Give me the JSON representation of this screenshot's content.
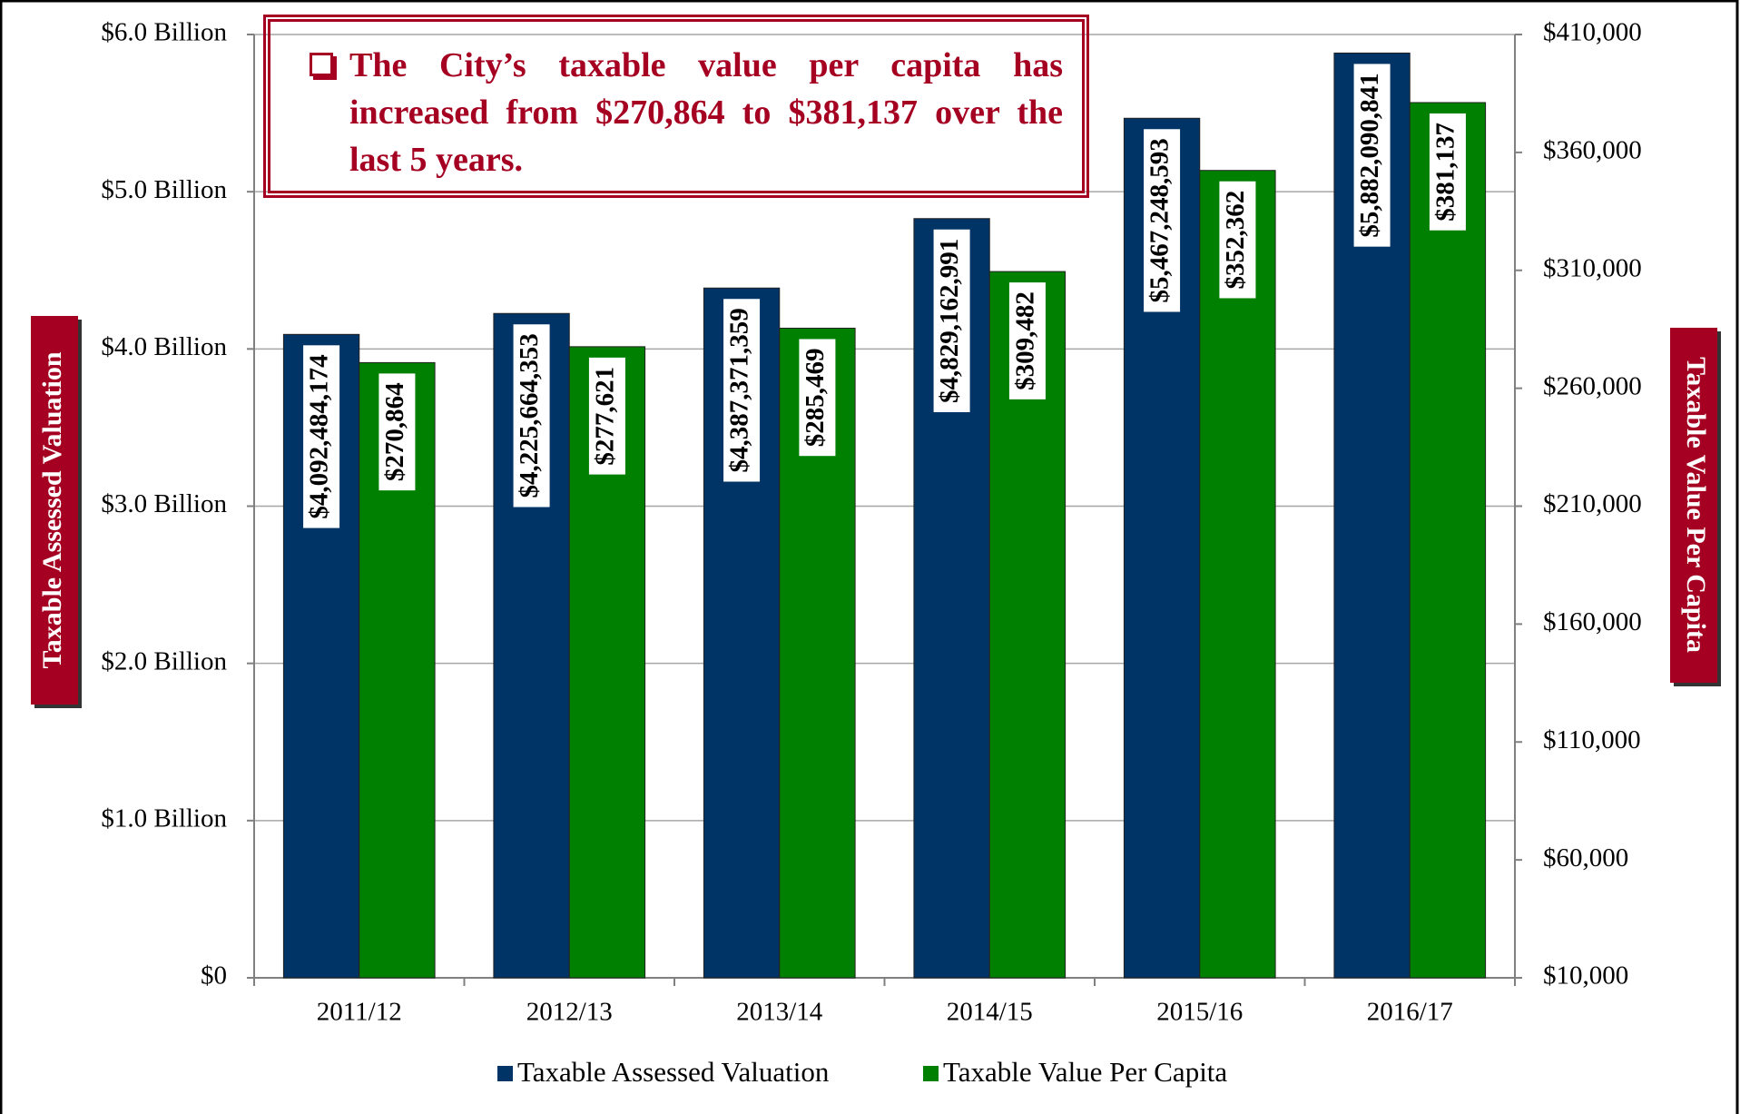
{
  "chart_data": {
    "type": "bar",
    "annotation": "The City’s taxable value per capita has increased from $270,864 to $381,137 over the last 5 years.",
    "ylabel": "Taxable Assessed Valuation",
    "y2label": "Taxable Value Per Capita",
    "categories": [
      "2011/12",
      "2012/13",
      "2013/14",
      "2014/15",
      "2015/16",
      "2016/17"
    ],
    "series": [
      {
        "name": "Taxable Assessed Valuation",
        "color": "#003366",
        "values": [
          4092484174,
          4225664353,
          4387371359,
          4829162991,
          5467248593,
          5882090841
        ],
        "value_labels": [
          "$4,092,484,174",
          "$4,225,664,353",
          "$4,387,371,359",
          "$4,829,162,991",
          "$5,467,248,593",
          "$5,882,090,841"
        ]
      },
      {
        "name": "Taxable Value Per Capita",
        "color": "#008000",
        "axis": "y2",
        "values": [
          270864,
          277621,
          285469,
          309482,
          352362,
          381137
        ],
        "value_labels": [
          "$270,864",
          "$277,621",
          "$285,469",
          "$309,482",
          "$352,362",
          "$381,137"
        ]
      }
    ],
    "ylim": [
      0,
      6000000000
    ],
    "yticks": [
      {
        "value": 0,
        "label": "$0"
      },
      {
        "value": 1000000000,
        "label": "$1.0 Billion"
      },
      {
        "value": 2000000000,
        "label": "$2.0 Billion"
      },
      {
        "value": 3000000000,
        "label": "$3.0 Billion"
      },
      {
        "value": 4000000000,
        "label": "$4.0 Billion"
      },
      {
        "value": 5000000000,
        "label": "$5.0 Billion"
      },
      {
        "value": 6000000000,
        "label": "$6.0 Billion"
      }
    ],
    "y2lim": [
      10000,
      410000
    ],
    "y2ticks": [
      {
        "value": 10000,
        "label": "$10,000"
      },
      {
        "value": 60000,
        "label": "$60,000"
      },
      {
        "value": 110000,
        "label": "$110,000"
      },
      {
        "value": 160000,
        "label": "$160,000"
      },
      {
        "value": 210000,
        "label": "$210,000"
      },
      {
        "value": 260000,
        "label": "$260,000"
      },
      {
        "value": 310000,
        "label": "$310,000"
      },
      {
        "value": 360000,
        "label": "$360,000"
      },
      {
        "value": 410000,
        "label": "$410,000"
      }
    ],
    "grid": true,
    "legend": "bottom"
  }
}
